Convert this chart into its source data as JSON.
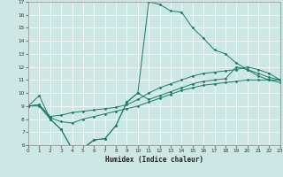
{
  "xlabel": "Humidex (Indice chaleur)",
  "xlim": [
    0,
    23
  ],
  "ylim": [
    6,
    17
  ],
  "xticks": [
    0,
    1,
    2,
    3,
    4,
    5,
    6,
    7,
    8,
    9,
    10,
    11,
    12,
    13,
    14,
    15,
    16,
    17,
    18,
    19,
    20,
    21,
    22,
    23
  ],
  "yticks": [
    6,
    7,
    8,
    9,
    10,
    11,
    12,
    13,
    14,
    15,
    16,
    17
  ],
  "bg_color": "#cde8e4",
  "line_color": "#1a7a6a",
  "grid_color": "#ffffff",
  "line1_x": [
    0,
    1,
    2,
    3,
    4,
    5,
    6,
    7,
    8,
    9,
    10,
    11,
    12,
    13,
    14,
    15,
    16,
    17,
    18,
    19,
    20,
    21,
    22,
    23
  ],
  "line1_y": [
    9.0,
    9.8,
    8.0,
    7.2,
    5.7,
    5.8,
    6.4,
    6.5,
    7.5,
    9.3,
    10.0,
    17.0,
    16.8,
    16.3,
    16.2,
    15.0,
    14.2,
    13.3,
    13.0,
    12.3,
    11.8,
    11.3,
    11.0,
    10.8
  ],
  "line2_x": [
    0,
    1,
    2,
    3,
    4,
    5,
    6,
    7,
    8,
    9,
    10,
    11,
    12,
    13,
    14,
    15,
    16,
    17,
    18,
    19,
    20,
    21,
    22,
    23
  ],
  "line2_y": [
    9.0,
    9.1,
    8.1,
    7.8,
    7.7,
    8.0,
    8.2,
    8.4,
    8.6,
    8.8,
    9.0,
    9.3,
    9.6,
    9.9,
    10.2,
    10.4,
    10.6,
    10.7,
    10.8,
    10.9,
    11.0,
    11.0,
    11.0,
    11.0
  ],
  "line3_x": [
    0,
    1,
    2,
    3,
    4,
    5,
    6,
    7,
    8,
    9,
    10,
    11,
    12,
    13,
    14,
    15,
    16,
    17,
    18,
    19,
    20,
    21,
    22,
    23
  ],
  "line3_y": [
    9.0,
    9.1,
    8.2,
    8.3,
    8.5,
    8.6,
    8.7,
    8.8,
    8.9,
    9.1,
    9.5,
    10.0,
    10.4,
    10.7,
    11.0,
    11.3,
    11.5,
    11.6,
    11.7,
    11.8,
    12.0,
    11.8,
    11.5,
    11.0
  ],
  "line4_x": [
    0,
    1,
    2,
    3,
    4,
    5,
    6,
    7,
    8,
    9,
    10,
    11,
    12,
    13,
    14,
    15,
    16,
    17,
    18,
    19,
    20,
    21,
    22,
    23
  ],
  "line4_y": [
    9.0,
    9.0,
    8.0,
    7.2,
    5.7,
    5.7,
    6.4,
    6.5,
    7.5,
    9.3,
    10.0,
    9.5,
    9.8,
    10.1,
    10.4,
    10.7,
    10.9,
    11.0,
    11.1,
    12.0,
    11.8,
    11.5,
    11.2,
    11.0
  ]
}
